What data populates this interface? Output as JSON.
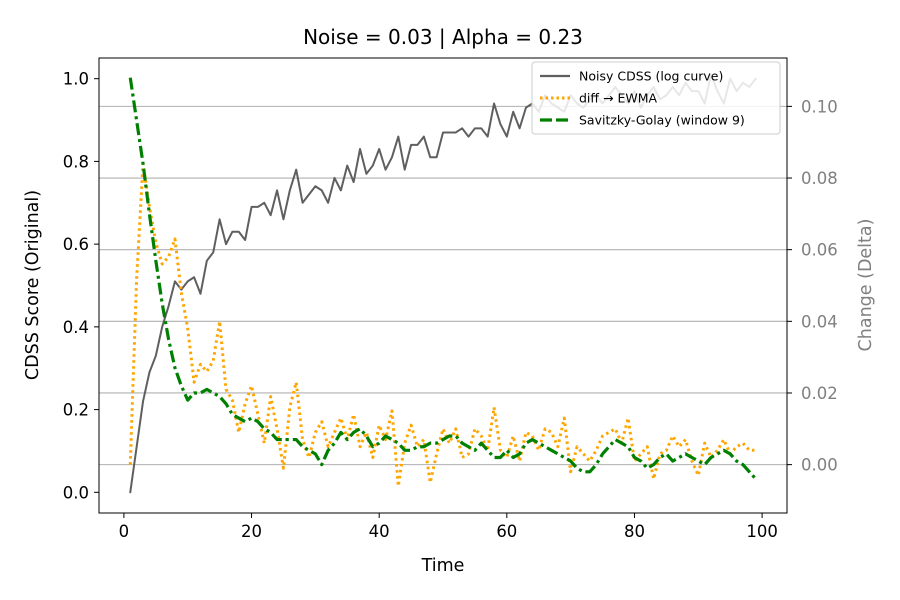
{
  "chart_data": {
    "type": "line",
    "title": "Noise = 0.03 | Alpha = 0.23",
    "xlabel": "Time",
    "ylabel_left": "CDSS Score (Original)",
    "ylabel_right": "Change (Delta)",
    "xlim": [
      -3.9,
      103.9
    ],
    "ylim_left": [
      -0.05,
      1.05
    ],
    "ylim_right": [
      -0.0135,
      0.1135
    ],
    "xticks": [
      0,
      20,
      40,
      60,
      80,
      100
    ],
    "yticks_left": [
      "0.0",
      "0.2",
      "0.4",
      "0.6",
      "0.8",
      "1.0"
    ],
    "yticks_right": [
      "0.00",
      "0.02",
      "0.04",
      "0.06",
      "0.08",
      "0.10"
    ],
    "grid": "horizontal lines at right-axis ticks",
    "legend_position": "upper-right",
    "colors": {
      "noisy": "#5f5f5f",
      "ewma": "#ffa500",
      "savgol": "#008000",
      "right_axis": "#808080",
      "grid": "#b0b0b0"
    },
    "series": [
      {
        "name": "Noisy CDSS (log curve)",
        "axis": "left",
        "style": "solid",
        "x": [
          1,
          2,
          3,
          4,
          5,
          6,
          7,
          8,
          9,
          10,
          11,
          12,
          13,
          14,
          15,
          16,
          17,
          18,
          19,
          20,
          21,
          22,
          23,
          24,
          25,
          26,
          27,
          28,
          29,
          30,
          31,
          32,
          33,
          34,
          35,
          36,
          37,
          38,
          39,
          40,
          41,
          42,
          43,
          44,
          45,
          46,
          47,
          48,
          49,
          50,
          51,
          52,
          53,
          54,
          55,
          56,
          57,
          58,
          59,
          60,
          61,
          62,
          63,
          64,
          65,
          66,
          67,
          68,
          69,
          70,
          71,
          72,
          73,
          74,
          75,
          76,
          77,
          78,
          79,
          80,
          81,
          82,
          83,
          84,
          85,
          86,
          87,
          88,
          89,
          90,
          91,
          92,
          93,
          94,
          95,
          96,
          97,
          98,
          99
        ],
        "values": [
          0.0,
          0.11,
          0.22,
          0.29,
          0.33,
          0.4,
          0.45,
          0.51,
          0.49,
          0.51,
          0.52,
          0.48,
          0.56,
          0.58,
          0.66,
          0.6,
          0.63,
          0.63,
          0.61,
          0.69,
          0.69,
          0.7,
          0.67,
          0.73,
          0.66,
          0.73,
          0.78,
          0.7,
          0.72,
          0.74,
          0.73,
          0.7,
          0.76,
          0.73,
          0.79,
          0.75,
          0.83,
          0.77,
          0.79,
          0.83,
          0.78,
          0.81,
          0.86,
          0.78,
          0.84,
          0.84,
          0.86,
          0.81,
          0.81,
          0.87,
          0.87,
          0.87,
          0.88,
          0.86,
          0.88,
          0.88,
          0.86,
          0.94,
          0.89,
          0.86,
          0.92,
          0.88,
          0.93,
          0.94,
          0.92,
          0.96,
          0.94,
          0.93,
          0.92,
          0.96,
          0.94,
          0.93,
          0.95,
          0.96,
          0.94,
          0.96,
          0.98,
          0.96,
          0.94,
          0.97,
          0.93,
          0.96,
          0.98,
          0.95,
          0.96,
          0.98,
          0.96,
          0.99,
          0.97,
          0.97,
          0.94,
          1.01,
          0.97,
          0.94,
          1.0,
          0.97,
          0.99,
          0.98,
          1.0
        ]
      },
      {
        "name": "diff → EWMA",
        "axis": "right",
        "style": "dotted",
        "x": [
          1,
          2,
          3,
          4,
          5,
          6,
          7,
          8,
          9,
          10,
          11,
          12,
          13,
          14,
          15,
          16,
          17,
          18,
          19,
          20,
          21,
          22,
          23,
          24,
          25,
          26,
          27,
          28,
          29,
          30,
          31,
          32,
          33,
          34,
          35,
          36,
          37,
          38,
          39,
          40,
          41,
          42,
          43,
          44,
          45,
          46,
          47,
          48,
          49,
          50,
          51,
          52,
          53,
          54,
          55,
          56,
          57,
          58,
          59,
          60,
          61,
          62,
          63,
          64,
          65,
          66,
          67,
          68,
          69,
          70,
          71,
          72,
          73,
          74,
          75,
          76,
          77,
          78,
          79,
          80,
          81,
          82,
          83,
          84,
          85,
          86,
          87,
          88,
          89,
          90,
          91,
          92,
          93,
          94,
          95,
          96,
          97,
          98,
          99
        ],
        "values": [
          0.0,
          0.052,
          0.084,
          0.072,
          0.062,
          0.056,
          0.058,
          0.063,
          0.048,
          0.038,
          0.023,
          0.028,
          0.026,
          0.029,
          0.04,
          0.021,
          0.018,
          0.009,
          0.017,
          0.022,
          0.014,
          0.006,
          0.019,
          0.01,
          -0.001,
          0.016,
          0.023,
          0.007,
          0.002,
          0.009,
          0.012,
          0.005,
          0.009,
          0.013,
          0.007,
          0.014,
          0.005,
          0.009,
          0.002,
          0.011,
          0.007,
          0.015,
          -0.006,
          0.006,
          0.011,
          0.005,
          0.007,
          -0.005,
          0.003,
          0.01,
          0.006,
          0.01,
          0.002,
          0.003,
          0.01,
          0.008,
          0.004,
          0.016,
          0.004,
          0.002,
          0.008,
          0.001,
          0.009,
          0.008,
          0.004,
          0.01,
          0.009,
          0.005,
          0.013,
          -0.002,
          0.005,
          0.003,
          0.001,
          0.004,
          0.008,
          0.009,
          0.01,
          0.006,
          0.013,
          0.001,
          0.003,
          0.005,
          -0.004,
          0.003,
          0.004,
          0.008,
          0.005,
          0.007,
          0.001,
          -0.003,
          0.006,
          0.002,
          0.004,
          0.007,
          0.003,
          0.005,
          0.006,
          0.004,
          0.004
        ]
      },
      {
        "name": "Savitzky-Golay (window 9)",
        "axis": "right",
        "style": "dashdot",
        "x": [
          1,
          2,
          3,
          4,
          5,
          6,
          7,
          8,
          9,
          10,
          11,
          12,
          13,
          14,
          15,
          16,
          17,
          18,
          19,
          20,
          21,
          22,
          23,
          24,
          25,
          26,
          27,
          28,
          29,
          30,
          31,
          32,
          33,
          34,
          35,
          36,
          37,
          38,
          39,
          40,
          41,
          42,
          43,
          44,
          45,
          46,
          47,
          48,
          49,
          50,
          51,
          52,
          53,
          54,
          55,
          56,
          57,
          58,
          59,
          60,
          61,
          62,
          63,
          64,
          65,
          66,
          67,
          68,
          69,
          70,
          71,
          72,
          73,
          74,
          75,
          76,
          77,
          78,
          79,
          80,
          81,
          82,
          83,
          84,
          85,
          86,
          87,
          88,
          89,
          90,
          91,
          92,
          93,
          94,
          95,
          96,
          97,
          98,
          99
        ],
        "values": [
          0.108,
          0.096,
          0.084,
          0.07,
          0.057,
          0.045,
          0.035,
          0.027,
          0.022,
          0.018,
          0.02,
          0.02,
          0.021,
          0.02,
          0.019,
          0.017,
          0.014,
          0.013,
          0.012,
          0.013,
          0.012,
          0.01,
          0.009,
          0.007,
          0.007,
          0.007,
          0.007,
          0.005,
          0.004,
          0.003,
          0.0,
          0.004,
          0.006,
          0.009,
          0.007,
          0.009,
          0.01,
          0.008,
          0.005,
          0.006,
          0.008,
          0.007,
          0.006,
          0.004,
          0.004,
          0.005,
          0.005,
          0.006,
          0.006,
          0.007,
          0.008,
          0.008,
          0.006,
          0.005,
          0.004,
          0.006,
          0.004,
          0.002,
          0.002,
          0.004,
          0.002,
          0.003,
          0.006,
          0.007,
          0.006,
          0.005,
          0.004,
          0.003,
          0.002,
          0.001,
          -0.001,
          -0.002,
          -0.002,
          0.0,
          0.003,
          0.005,
          0.007,
          0.006,
          0.005,
          0.002,
          0.001,
          -0.001,
          0.0,
          0.002,
          0.003,
          0.001,
          0.002,
          0.003,
          0.002,
          0.001,
          0.0,
          0.002,
          0.003,
          0.004,
          0.003,
          0.001,
          0.0,
          -0.002,
          -0.004
        ]
      }
    ]
  }
}
